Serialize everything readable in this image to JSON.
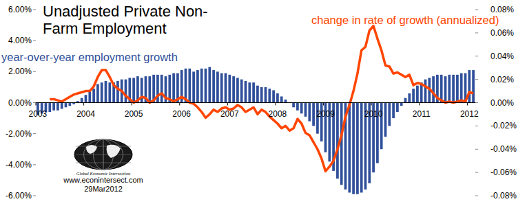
{
  "chart_data": {
    "type": "bar",
    "title": "Unadjusted Private Non-Farm Employment",
    "categories": [
      "2003",
      null,
      null,
      null,
      null,
      null,
      null,
      null,
      null,
      null,
      null,
      null,
      "2004",
      null,
      null,
      null,
      null,
      null,
      null,
      null,
      null,
      null,
      null,
      null,
      "2005",
      null,
      null,
      null,
      null,
      null,
      null,
      null,
      null,
      null,
      null,
      null,
      "2006",
      null,
      null,
      null,
      null,
      null,
      null,
      null,
      null,
      null,
      null,
      null,
      "2007",
      null,
      null,
      null,
      null,
      null,
      null,
      null,
      null,
      null,
      null,
      null,
      "2008",
      null,
      null,
      null,
      null,
      null,
      null,
      null,
      null,
      null,
      null,
      null,
      "2009",
      null,
      null,
      null,
      null,
      null,
      null,
      null,
      null,
      null,
      null,
      null,
      "2010",
      null,
      null,
      null,
      null,
      null,
      null,
      null,
      null,
      null,
      null,
      null,
      "2011",
      null,
      null,
      null,
      null,
      null,
      null,
      null,
      null,
      null,
      null,
      null,
      "2012",
      null
    ],
    "series": [
      {
        "name": "year-over-year employment growth",
        "type": "bar",
        "color": "#2f4f9a",
        "values": [
          -0.8,
          -0.7,
          -0.6,
          -0.6,
          -0.5,
          -0.5,
          -0.4,
          -0.3,
          -0.2,
          -0.1,
          0.1,
          0.3,
          0.5,
          0.7,
          0.9,
          1.2,
          1.3,
          1.4,
          1.3,
          1.3,
          1.4,
          1.5,
          1.5,
          1.6,
          1.6,
          1.7,
          1.6,
          1.7,
          1.7,
          1.8,
          1.8,
          1.8,
          1.7,
          1.8,
          1.9,
          1.9,
          2.1,
          2.2,
          2.2,
          2.0,
          2.1,
          2.2,
          2.2,
          2.3,
          2.1,
          2.0,
          1.9,
          1.9,
          1.8,
          1.7,
          1.6,
          1.5,
          1.4,
          1.3,
          1.3,
          1.1,
          1.0,
          1.0,
          0.9,
          0.8,
          0.6,
          0.4,
          0.2,
          0.0,
          -0.3,
          -0.5,
          -0.7,
          -0.9,
          -1.2,
          -1.5,
          -2.0,
          -2.5,
          -3.2,
          -3.8,
          -4.4,
          -4.9,
          -5.3,
          -5.6,
          -5.8,
          -5.9,
          -5.9,
          -5.8,
          -5.6,
          -5.2,
          -4.5,
          -3.9,
          -3.0,
          -2.2,
          -1.5,
          -1.0,
          -0.6,
          -0.2,
          0.3,
          0.6,
          0.9,
          1.1,
          1.3,
          1.5,
          1.6,
          1.7,
          1.8,
          1.8,
          1.7,
          1.8,
          1.8,
          1.8,
          1.9,
          1.9,
          2.1,
          2.1
        ]
      },
      {
        "name": "change in rate of growth (annualized)",
        "type": "line",
        "color": "#ff4500",
        "axis": "y2",
        "values": [
          null,
          null,
          null,
          0.003,
          0.003,
          0.002,
          0.001,
          0.003,
          0.005,
          0.007,
          0.008,
          0.009,
          0.01,
          0.01,
          0.014,
          0.022,
          0.028,
          0.028,
          0.022,
          0.015,
          0.012,
          0.01,
          0.006,
          0.003,
          0.0,
          0.002,
          0.005,
          0.004,
          0.0,
          0.002,
          0.006,
          0.008,
          0.004,
          0.003,
          0.001,
          0.003,
          0.005,
          0.003,
          0.0,
          -0.001,
          -0.004,
          -0.008,
          -0.013,
          -0.01,
          -0.006,
          -0.008,
          -0.005,
          -0.004,
          -0.006,
          -0.005,
          -0.002,
          -0.004,
          -0.008,
          -0.006,
          -0.004,
          -0.01,
          -0.006,
          -0.008,
          -0.012,
          -0.015,
          -0.018,
          -0.022,
          -0.02,
          -0.024,
          -0.022,
          -0.014,
          -0.018,
          -0.026,
          -0.028,
          -0.034,
          -0.04,
          -0.048,
          -0.059,
          -0.055,
          -0.05,
          -0.04,
          -0.028,
          -0.012,
          -0.002,
          0.01,
          0.025,
          0.045,
          0.048,
          0.062,
          0.066,
          0.055,
          0.045,
          0.032,
          0.031,
          0.025,
          0.026,
          0.024,
          0.022,
          0.024,
          0.015,
          0.017,
          0.016,
          0.014,
          0.012,
          0.008,
          0.004,
          0.002,
          0.0,
          0.001,
          0.0,
          0.001,
          0.002,
          0.001,
          0.009,
          0.008
        ]
      }
    ],
    "ylim": [
      -6,
      6
    ],
    "yticks": [
      {
        "value": -6,
        "label": "-6.00%"
      },
      {
        "value": -4,
        "label": "-4.00%"
      },
      {
        "value": -2,
        "label": "-2.00%"
      },
      {
        "value": 0,
        "label": "0.00%"
      },
      {
        "value": 2,
        "label": "2.00%"
      },
      {
        "value": 4,
        "label": "4.00%"
      },
      {
        "value": 6,
        "label": "6.00%"
      }
    ],
    "y2lim": [
      -0.08,
      0.08
    ],
    "y2ticks": [
      {
        "value": -0.08,
        "label": "-0.08%"
      },
      {
        "value": -0.06,
        "label": "-0.06%"
      },
      {
        "value": -0.04,
        "label": "-0.04%"
      },
      {
        "value": -0.02,
        "label": "-0.02%"
      },
      {
        "value": 0,
        "label": "0.00%"
      },
      {
        "value": 0.02,
        "label": "0.02%"
      },
      {
        "value": 0.04,
        "label": "0.04%"
      },
      {
        "value": 0.06,
        "label": "0.06%"
      },
      {
        "value": 0.08,
        "label": "0.08%"
      }
    ],
    "grid": false,
    "annotations": [
      "Global Economic Intersection",
      "www.econintersect.com",
      "29Mar2012"
    ]
  }
}
